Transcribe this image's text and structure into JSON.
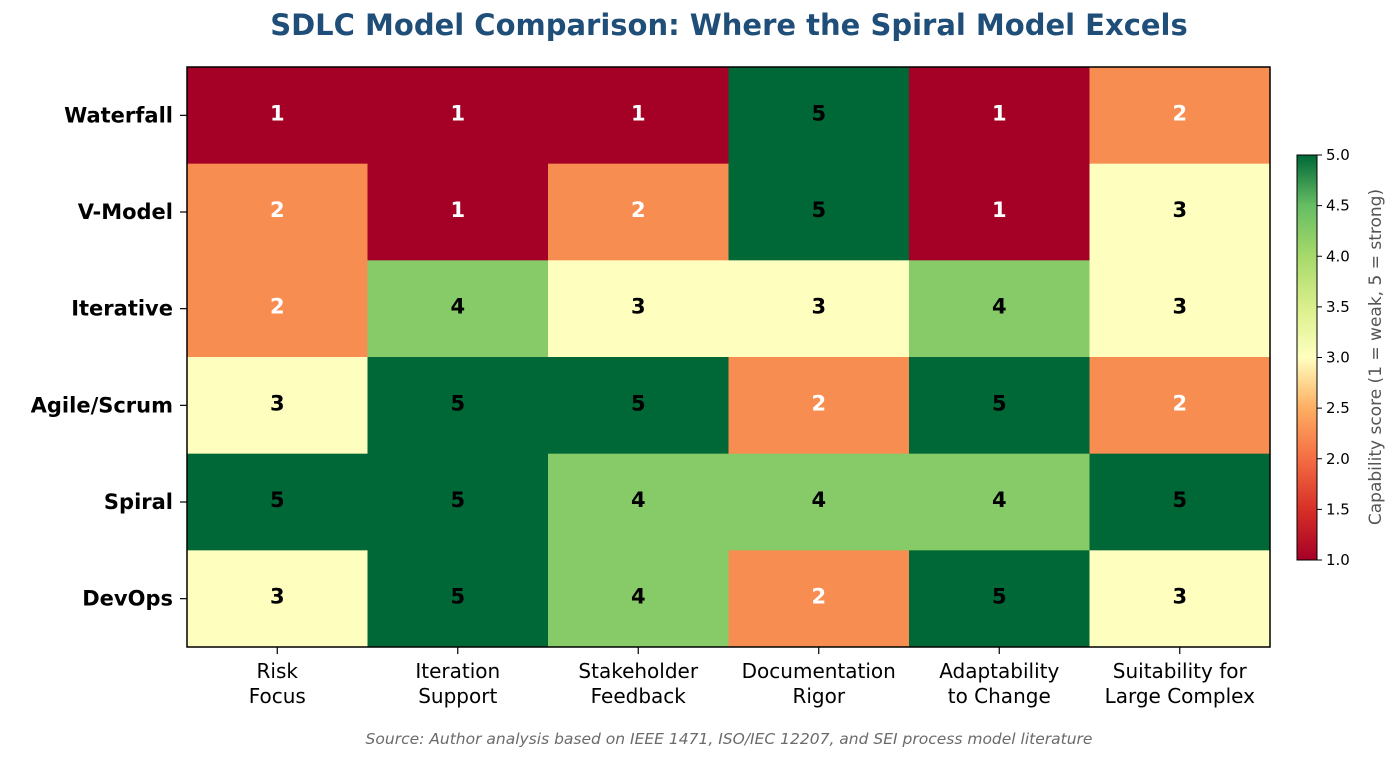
{
  "chart_data": {
    "type": "heatmap",
    "title": "SDLC Model Comparison: Where the Spiral Model Excels",
    "rows": [
      "Waterfall",
      "V-Model",
      "Iterative",
      "Agile/Scrum",
      "Spiral",
      "DevOps"
    ],
    "columns": [
      [
        "Risk",
        "Focus"
      ],
      [
        "Iteration",
        "Support"
      ],
      [
        "Stakeholder",
        "Feedback"
      ],
      [
        "Documentation",
        "Rigor"
      ],
      [
        "Adaptability",
        "to Change"
      ],
      [
        "Suitability for",
        "Large Complex"
      ]
    ],
    "values": [
      [
        1,
        1,
        1,
        5,
        1,
        2
      ],
      [
        2,
        1,
        2,
        5,
        1,
        3
      ],
      [
        2,
        4,
        3,
        3,
        4,
        3
      ],
      [
        3,
        5,
        5,
        2,
        5,
        2
      ],
      [
        5,
        5,
        4,
        4,
        4,
        5
      ],
      [
        3,
        5,
        4,
        2,
        5,
        3
      ]
    ],
    "colorscale": "RdYlGn",
    "score_colors": {
      "1": "#a50026",
      "2": "#f88d52",
      "3": "#feffbe",
      "4": "#86cb67",
      "5": "#006837"
    },
    "vmin": 1,
    "vmax": 5,
    "colorbar": {
      "label": "Capability score (1 = weak, 5 = strong)",
      "ticks": [
        "1.0",
        "1.5",
        "2.0",
        "2.5",
        "3.0",
        "3.5",
        "4.0",
        "4.5",
        "5.0"
      ]
    },
    "source_note": "Source: Author analysis based on IEEE 1471, ISO/IEC 12207, and SEI process model literature"
  }
}
